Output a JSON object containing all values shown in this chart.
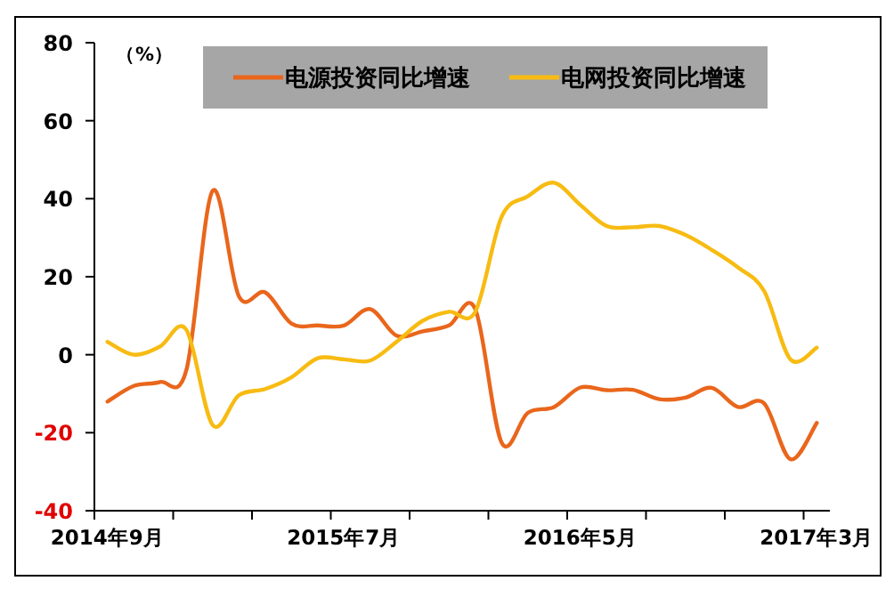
{
  "chart_data": {
    "type": "line",
    "ylabel": "（%）",
    "categories": [
      "2014年9月",
      null,
      null,
      null,
      null,
      null,
      null,
      null,
      null,
      "2015年7月",
      null,
      null,
      null,
      null,
      null,
      null,
      null,
      null,
      "2016年5月",
      null,
      null,
      null,
      null,
      null,
      null,
      null,
      null,
      "2017年3月"
    ],
    "series": [
      {
        "name": "电源投资同比增速",
        "color": "#e9661c",
        "values": [
          -12,
          -8,
          -7,
          -4,
          42,
          15,
          16,
          8,
          7.5,
          7.5,
          11.7,
          4.9,
          6,
          7.5,
          11.7,
          -22.5,
          -14.9,
          -13.4,
          -8.4,
          -9.1,
          -9,
          -11.4,
          -11,
          -8.5,
          -13.4,
          -12.5,
          -26.8,
          -17.5
        ]
      },
      {
        "name": "电网投资同比增速",
        "color": "#f7bb12",
        "values": [
          3.3,
          0,
          2.1,
          6.4,
          -18,
          -10.4,
          -8.8,
          -5.8,
          -0.9,
          -1.2,
          -1.5,
          3.3,
          8.7,
          11,
          11,
          35.3,
          40.6,
          44.1,
          38.4,
          33,
          32.7,
          33,
          30.7,
          26.9,
          22.4,
          16.3,
          -1.2,
          1.8
        ]
      }
    ],
    "ylim": [
      -40,
      80
    ],
    "yticks": [
      -40,
      -20,
      0,
      20,
      40,
      60,
      80
    ],
    "legend": "top",
    "grid": false,
    "marker": "none",
    "line_style": "solid"
  }
}
